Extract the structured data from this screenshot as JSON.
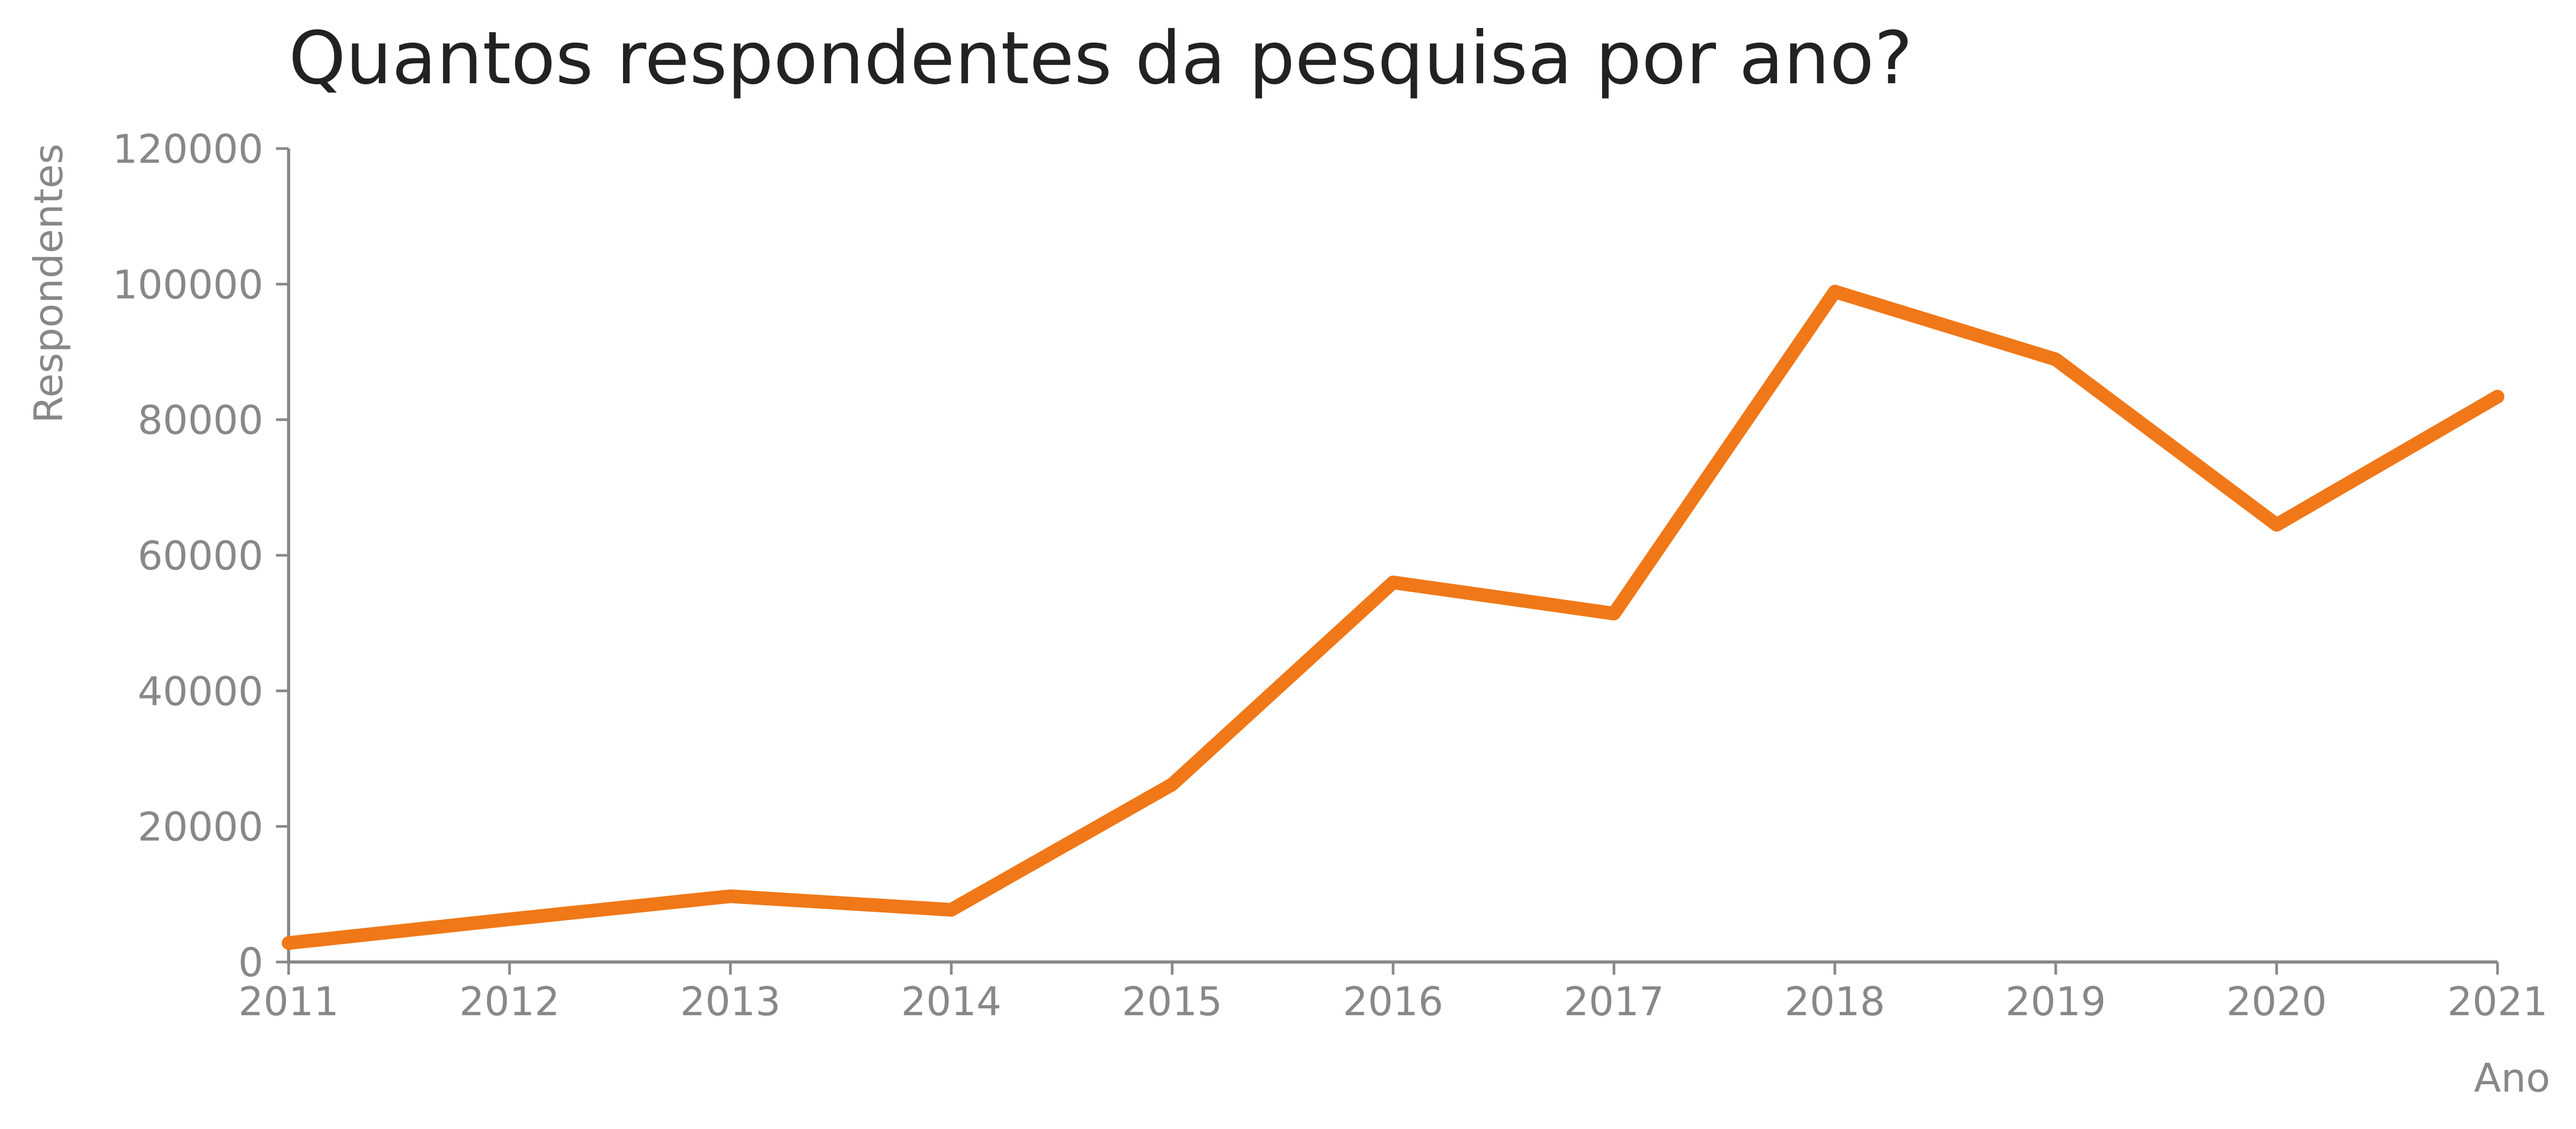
{
  "chart_data": {
    "type": "line",
    "title": "Quantos respondentes da pesquisa por ano?",
    "xlabel": "Ano",
    "ylabel": "Respondentes",
    "x": [
      2011,
      2012,
      2013,
      2014,
      2015,
      2016,
      2017,
      2018,
      2019,
      2020,
      2021
    ],
    "x_tick_labels": [
      "2011",
      "2012",
      "2013",
      "2014",
      "2015",
      "2016",
      "2017",
      "2018",
      "2019",
      "2020",
      "2021"
    ],
    "y_tick_labels": [
      "0",
      "20000",
      "40000",
      "60000",
      "80000",
      "100000",
      "120000"
    ],
    "y_ticks": [
      0,
      20000,
      40000,
      60000,
      80000,
      100000,
      120000
    ],
    "xlim": [
      2011,
      2021
    ],
    "ylim": [
      0,
      120000
    ],
    "grid": false,
    "legend": "none",
    "series": [
      {
        "values": [
          2800,
          6300,
          9700,
          7700,
          26200,
          56000,
          51400,
          98900,
          88900,
          64500,
          83400
        ],
        "color": "#f07818"
      }
    ],
    "colors": {
      "axis": "#888888",
      "title": "#222222"
    }
  }
}
